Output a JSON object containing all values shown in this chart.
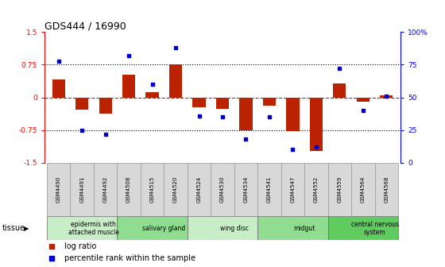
{
  "title": "GDS444 / 16990",
  "samples": [
    "GSM4490",
    "GSM4491",
    "GSM4492",
    "GSM4508",
    "GSM4515",
    "GSM4520",
    "GSM4524",
    "GSM4530",
    "GSM4534",
    "GSM4541",
    "GSM4547",
    "GSM4552",
    "GSM4559",
    "GSM4564",
    "GSM4568"
  ],
  "log_ratio": [
    0.42,
    -0.28,
    -0.38,
    0.52,
    0.12,
    0.75,
    -0.22,
    -0.27,
    -0.75,
    -0.18,
    -0.78,
    -1.22,
    0.32,
    -0.1,
    0.04
  ],
  "percentile": [
    78,
    25,
    22,
    82,
    60,
    88,
    36,
    35,
    18,
    35,
    10,
    12,
    72,
    40,
    51
  ],
  "tissues": [
    {
      "label": "epidermis with\nattached muscle",
      "start": 0,
      "end": 3,
      "color": "#c8eec8"
    },
    {
      "label": "salivary gland",
      "start": 3,
      "end": 6,
      "color": "#90dc90"
    },
    {
      "label": "wing disc",
      "start": 6,
      "end": 9,
      "color": "#c8eec8"
    },
    {
      "label": "midgut",
      "start": 9,
      "end": 12,
      "color": "#90dc90"
    },
    {
      "label": "central nervous\nsystem",
      "start": 12,
      "end": 15,
      "color": "#60cc60"
    }
  ],
  "bar_color": "#bb2200",
  "dot_color": "#0000cc",
  "ylim_left": [
    -1.5,
    1.5
  ],
  "ylim_right": [
    0,
    100
  ],
  "yticks_left": [
    -1.5,
    -0.75,
    0,
    0.75,
    1.5
  ],
  "yticks_right": [
    0,
    25,
    50,
    75,
    100
  ],
  "ytick_labels_left": [
    "-1.5",
    "-0.75",
    "0",
    "0.75",
    "1.5"
  ],
  "ytick_labels_right": [
    "0",
    "25",
    "50",
    "75",
    "100%"
  ],
  "legend_items": [
    {
      "label": "log ratio",
      "color": "#bb2200"
    },
    {
      "label": "percentile rank within the sample",
      "color": "#0000cc"
    }
  ],
  "tissue_label": "tissue",
  "background_color": "#ffffff",
  "sample_box_color": "#d8d8d8"
}
